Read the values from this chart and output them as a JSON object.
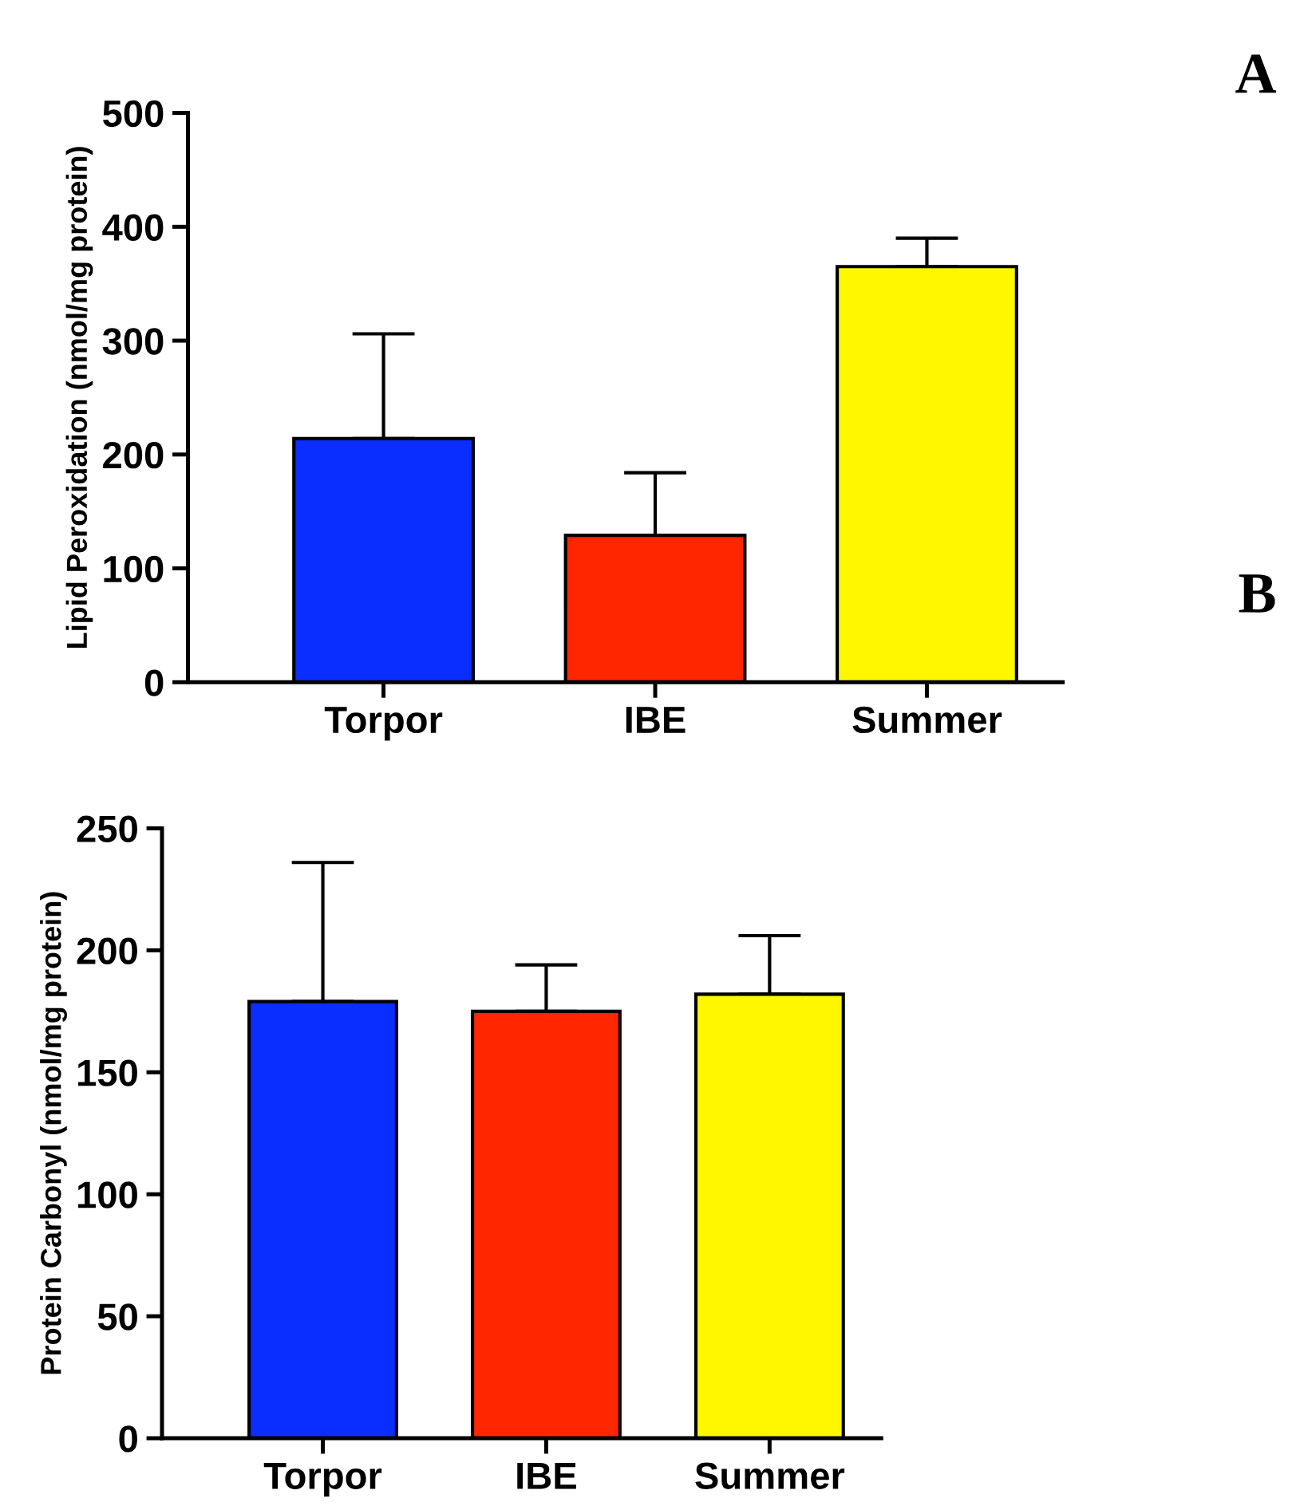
{
  "chart_data": [
    {
      "type": "bar",
      "categories": [
        "Torpor",
        "IBE",
        "Summer"
      ],
      "values": [
        214,
        129,
        365
      ],
      "colors": [
        "#0a2eff",
        "#ff2600",
        "#fff700"
      ],
      "errors": [
        [
          214,
          306
        ],
        [
          129,
          184
        ],
        [
          365,
          390
        ]
      ],
      "ylabel": "Lipid Peroxidation (nmol/mg protein)",
      "ylim": [
        0,
        500
      ],
      "yticks": [
        0,
        100,
        200,
        300,
        400,
        500
      ],
      "annotations": [
        "A"
      ]
    },
    {
      "type": "bar",
      "categories": [
        "Torpor",
        "IBE",
        "Summer"
      ],
      "values": [
        179,
        175,
        182
      ],
      "colors": [
        "#0a2eff",
        "#ff2600",
        "#fff700"
      ],
      "errors": [
        [
          179,
          236
        ],
        [
          175,
          194
        ],
        [
          182,
          206
        ]
      ],
      "ylabel": "Protein Carbonyl (nmol/mg protein)",
      "ylim": [
        0,
        250
      ],
      "yticks": [
        0,
        50,
        100,
        150,
        200,
        250
      ],
      "annotations": [
        "B"
      ]
    }
  ]
}
